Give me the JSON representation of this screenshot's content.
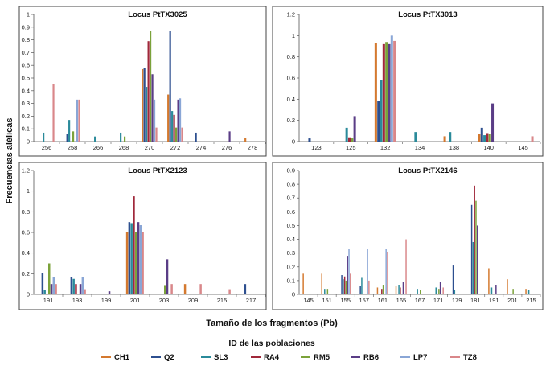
{
  "figure": {
    "ylabel": "Frecuencias alélicas",
    "xlabel": "Tamaño de los fragmentos (Pb)",
    "legend_title": "ID de las poblaciones"
  },
  "series": [
    {
      "name": "CH1",
      "color": "#d4792f"
    },
    {
      "name": "Q2",
      "color": "#2d4f8f"
    },
    {
      "name": "SL3",
      "color": "#2a8a9a"
    },
    {
      "name": "RA4",
      "color": "#a0283a"
    },
    {
      "name": "RM5",
      "color": "#7ba23a"
    },
    {
      "name": "RB6",
      "color": "#5a3d86"
    },
    {
      "name": "LP7",
      "color": "#8aa6d6"
    },
    {
      "name": "TZ8",
      "color": "#d9878a"
    }
  ],
  "chart_data": [
    {
      "type": "bar",
      "title": "Locus PtTX3025",
      "ylim": [
        0,
        1
      ],
      "yticks": [
        "0",
        "0.1",
        "0.2",
        "0.3",
        "0.4",
        "0.5",
        "0.6",
        "0.7",
        "0.8",
        "0.9",
        "1"
      ],
      "categories": [
        "256",
        "258",
        "266",
        "268",
        "270",
        "272",
        "274",
        "276",
        "278"
      ],
      "values": [
        [
          0,
          0,
          0.07,
          0,
          0,
          0,
          0,
          0.45
        ],
        [
          0,
          0.06,
          0.17,
          0,
          0.08,
          0,
          0.33,
          0.33
        ],
        [
          0,
          0,
          0.04,
          0,
          0,
          0,
          0,
          0
        ],
        [
          0,
          0,
          0.07,
          0,
          0.04,
          0,
          0,
          0
        ],
        [
          0.57,
          0.58,
          0.43,
          0.79,
          0.87,
          0.53,
          0.33,
          0.11
        ],
        [
          0.37,
          0.87,
          0.24,
          0.21,
          0.11,
          0.33,
          0.34,
          0.11
        ],
        [
          0,
          0.07,
          0,
          0,
          0,
          0,
          0,
          0
        ],
        [
          0,
          0,
          0,
          0,
          0,
          0.08,
          0,
          0
        ],
        [
          0.03,
          0,
          0,
          0,
          0,
          0,
          0,
          0
        ]
      ]
    },
    {
      "type": "bar",
      "title": "Locus PtTX3013",
      "ylim": [
        0,
        1.2
      ],
      "yticks": [
        "0",
        "0.2",
        "0.4",
        "0.6",
        "0.8",
        "1",
        "1.2"
      ],
      "categories": [
        "123",
        "125",
        "132",
        "134",
        "138",
        "140",
        "145"
      ],
      "values": [
        [
          0,
          0.03,
          0,
          0,
          0,
          0,
          0,
          0
        ],
        [
          0,
          0,
          0.13,
          0.04,
          0.03,
          0.24,
          0,
          0
        ],
        [
          0.93,
          0.38,
          0.58,
          0.92,
          0.94,
          0.92,
          1.0,
          0.95
        ],
        [
          0,
          0,
          0.09,
          0,
          0,
          0,
          0,
          0
        ],
        [
          0.05,
          0,
          0.09,
          0,
          0,
          0,
          0,
          0
        ],
        [
          0.07,
          0.13,
          0.06,
          0.08,
          0.07,
          0.36,
          0,
          0
        ],
        [
          0,
          0,
          0,
          0,
          0,
          0,
          0,
          0.05
        ]
      ]
    },
    {
      "type": "bar",
      "title": "Locus PtTX2123",
      "ylim": [
        0,
        1.2
      ],
      "yticks": [
        "0",
        "0.2",
        "0.4",
        "0.6",
        "0.8",
        "1",
        "1.2"
      ],
      "categories": [
        "191",
        "193",
        "199",
        "201",
        "203",
        "209",
        "215",
        "217"
      ],
      "values": [
        [
          0,
          0.21,
          0.04,
          0,
          0.3,
          0.1,
          0.17,
          0.1
        ],
        [
          0,
          0.17,
          0.15,
          0.1,
          0,
          0.1,
          0.17,
          0.05
        ],
        [
          0,
          0,
          0,
          0,
          0,
          0.03,
          0,
          0
        ],
        [
          0.6,
          0.7,
          0.69,
          0.95,
          0.6,
          0.7,
          0.67,
          0.6
        ],
        [
          0,
          0,
          0,
          0,
          0.09,
          0.34,
          0,
          0.1
        ],
        [
          0.1,
          0,
          0,
          0,
          0,
          0,
          0,
          0.1
        ],
        [
          0,
          0,
          0,
          0,
          0,
          0,
          0,
          0.05
        ],
        [
          0,
          0.1,
          0,
          0,
          0,
          0,
          0,
          0
        ]
      ]
    },
    {
      "type": "bar",
      "title": "Locus PtTX2146",
      "ylim": [
        0,
        0.9
      ],
      "yticks": [
        "0",
        "0.1",
        "0.2",
        "0.3",
        "0.4",
        "0.5",
        "0.6",
        "0.7",
        "0.8",
        "0.9"
      ],
      "categories": [
        "145",
        "151",
        "155",
        "157",
        "161",
        "165",
        "167",
        "171",
        "179",
        "181",
        "191",
        "201",
        "215"
      ],
      "values": [
        [
          0.15,
          0,
          0,
          0,
          0,
          0,
          0,
          0
        ],
        [
          0.15,
          0,
          0.04,
          0,
          0.04,
          0,
          0,
          0
        ],
        [
          0,
          0.14,
          0.11,
          0.13,
          0.1,
          0.28,
          0.33,
          0.15
        ],
        [
          0,
          0.06,
          0.12,
          0,
          0,
          0,
          0.33,
          0.1
        ],
        [
          0.05,
          0,
          0,
          0.04,
          0.07,
          0,
          0.33,
          0.31
        ],
        [
          0.06,
          0,
          0.07,
          0.05,
          0,
          0.09,
          0,
          0.4
        ],
        [
          0,
          0,
          0.04,
          0,
          0.03,
          0,
          0,
          0
        ],
        [
          0,
          0,
          0.05,
          0,
          0.04,
          0.09,
          0,
          0.05
        ],
        [
          0,
          0.21,
          0.03,
          0,
          0,
          0,
          0,
          0
        ],
        [
          0,
          0.65,
          0.38,
          0.79,
          0.68,
          0.5,
          0,
          0
        ],
        [
          0.19,
          0,
          0.05,
          0,
          0,
          0.07,
          0,
          0
        ],
        [
          0.11,
          0,
          0,
          0,
          0.04,
          0,
          0,
          0
        ],
        [
          0.04,
          0,
          0.03,
          0,
          0,
          0,
          0,
          0
        ]
      ]
    }
  ]
}
